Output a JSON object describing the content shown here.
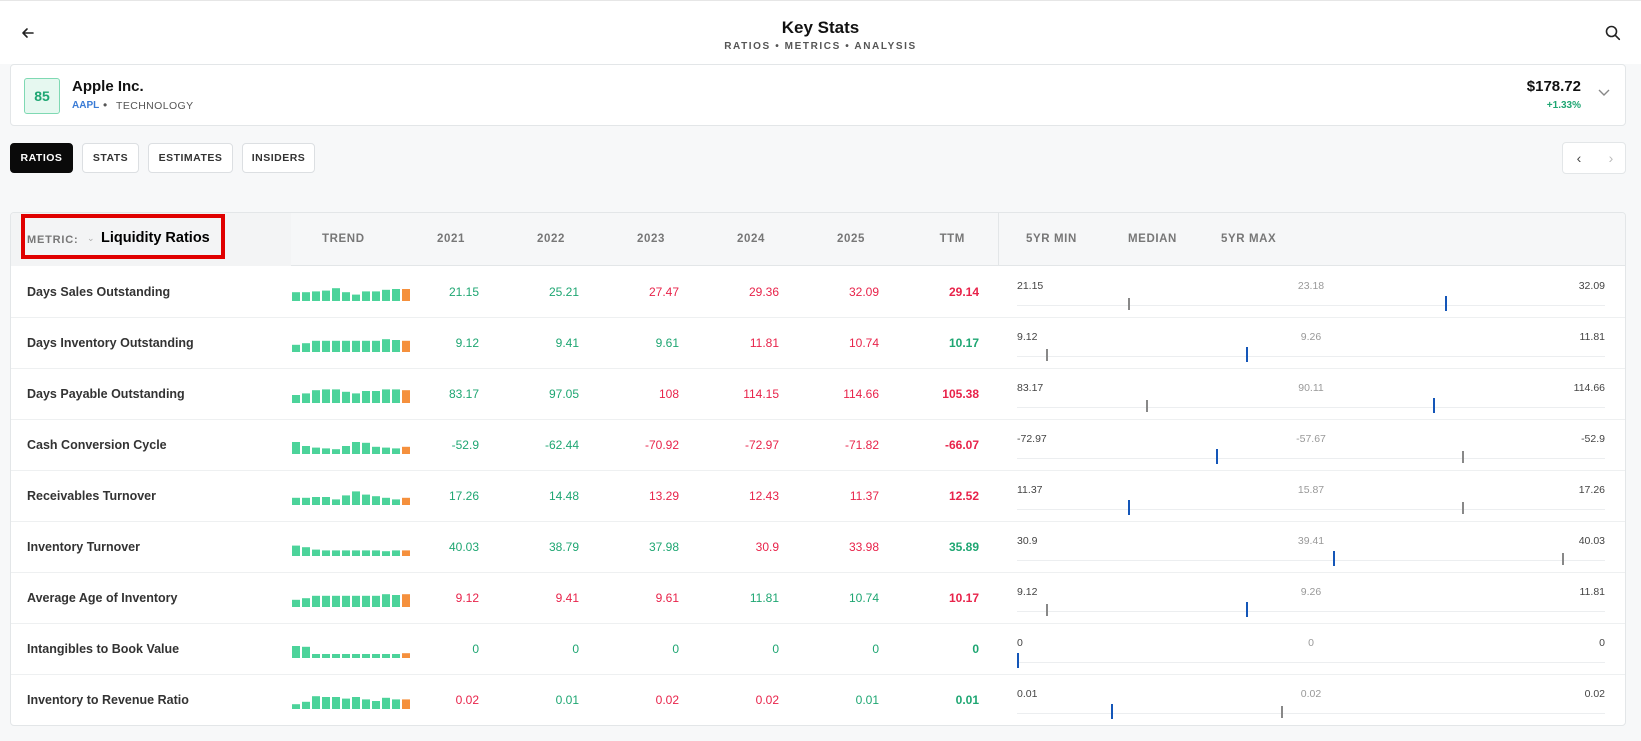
{
  "header": {
    "title": "Key Stats",
    "subtitle": "RATIOS • METRICS • ANALYSIS"
  },
  "company": {
    "score": "85",
    "name": "Apple Inc.",
    "ticker": "AAPL",
    "separator": "•",
    "sector": "TECHNOLOGY",
    "price": "$178.72",
    "change": "+1.33%"
  },
  "tabs": [
    {
      "label": "RATIOS",
      "active": true
    },
    {
      "label": "STATS",
      "active": false
    },
    {
      "label": "ESTIMATES",
      "active": false
    },
    {
      "label": "INSIDERS",
      "active": false
    }
  ],
  "table": {
    "metric_label": "METRIC:",
    "metric_value": "Liquidity Ratios",
    "columns": {
      "trend": "TREND",
      "y2021": "2021",
      "y2022": "2022",
      "y2023": "2023",
      "y2024": "2024",
      "y2025": "2025",
      "ttm": "TTM",
      "min": "5YR MIN",
      "median": "MEDIAN",
      "max": "5YR MAX"
    },
    "rows": [
      {
        "label": "Days Sales Outstanding",
        "values": [
          "21.15",
          "25.21",
          "27.47",
          "29.36",
          "32.09"
        ],
        "ttm": "29.14",
        "colors": [
          "pos",
          "pos",
          "neg",
          "neg",
          "neg"
        ],
        "ttm_color": "neg",
        "min": "21.15",
        "median": "23.18",
        "max": "32.09",
        "med_frac": 0.19,
        "cur_frac": 0.73,
        "trend": [
          0.55,
          0.55,
          0.6,
          0.65,
          0.8,
          0.55,
          0.4,
          0.6,
          0.6,
          0.7,
          0.75,
          0.75
        ]
      },
      {
        "label": "Days Inventory Outstanding",
        "values": [
          "9.12",
          "9.41",
          "9.61",
          "11.81",
          "10.74"
        ],
        "ttm": "10.17",
        "colors": [
          "pos",
          "pos",
          "pos",
          "neg",
          "neg"
        ],
        "ttm_color": "pos",
        "min": "9.12",
        "median": "9.26",
        "max": "11.81",
        "med_frac": 0.05,
        "cur_frac": 0.39,
        "trend": [
          0.45,
          0.55,
          0.7,
          0.7,
          0.7,
          0.7,
          0.7,
          0.7,
          0.7,
          0.8,
          0.75,
          0.7
        ]
      },
      {
        "label": "Days Payable Outstanding",
        "values": [
          "83.17",
          "97.05",
          "108",
          "114.15",
          "114.66"
        ],
        "ttm": "105.38",
        "colors": [
          "pos",
          "pos",
          "neg",
          "neg",
          "neg"
        ],
        "ttm_color": "neg",
        "min": "83.17",
        "median": "90.11",
        "max": "114.66",
        "med_frac": 0.22,
        "cur_frac": 0.71,
        "trend": [
          0.5,
          0.6,
          0.8,
          0.85,
          0.85,
          0.7,
          0.6,
          0.75,
          0.75,
          0.85,
          0.85,
          0.8
        ]
      },
      {
        "label": "Cash Conversion Cycle",
        "values": [
          "-52.9",
          "-62.44",
          "-70.92",
          "-72.97",
          "-71.82"
        ],
        "ttm": "-66.07",
        "colors": [
          "pos",
          "pos",
          "neg",
          "neg",
          "neg"
        ],
        "ttm_color": "neg",
        "min": "-72.97",
        "median": "-57.67",
        "max": "-52.9",
        "med_frac": 0.76,
        "cur_frac": 0.34,
        "trend": [
          0.75,
          0.5,
          0.4,
          0.35,
          0.3,
          0.5,
          0.75,
          0.7,
          0.45,
          0.4,
          0.35,
          0.45
        ]
      },
      {
        "label": "Receivables Turnover",
        "values": [
          "17.26",
          "14.48",
          "13.29",
          "12.43",
          "11.37"
        ],
        "ttm": "12.52",
        "colors": [
          "pos",
          "pos",
          "neg",
          "neg",
          "neg"
        ],
        "ttm_color": "neg",
        "min": "11.37",
        "median": "15.87",
        "max": "17.26",
        "med_frac": 0.76,
        "cur_frac": 0.19,
        "trend": [
          0.45,
          0.45,
          0.5,
          0.5,
          0.35,
          0.6,
          0.85,
          0.65,
          0.55,
          0.45,
          0.35,
          0.45
        ]
      },
      {
        "label": "Inventory Turnover",
        "values": [
          "40.03",
          "38.79",
          "37.98",
          "30.9",
          "33.98"
        ],
        "ttm": "35.89",
        "colors": [
          "pos",
          "pos",
          "pos",
          "neg",
          "neg"
        ],
        "ttm_color": "pos",
        "min": "30.9",
        "median": "39.41",
        "max": "40.03",
        "med_frac": 0.93,
        "cur_frac": 0.54,
        "trend": [
          0.65,
          0.55,
          0.4,
          0.35,
          0.35,
          0.35,
          0.35,
          0.35,
          0.35,
          0.3,
          0.35,
          0.35
        ]
      },
      {
        "label": "Average Age of Inventory",
        "values": [
          "9.12",
          "9.41",
          "9.61",
          "11.81",
          "10.74"
        ],
        "ttm": "10.17",
        "colors": [
          "neg",
          "neg",
          "neg",
          "pos",
          "pos"
        ],
        "ttm_color": "neg",
        "min": "9.12",
        "median": "9.26",
        "max": "11.81",
        "med_frac": 0.05,
        "cur_frac": 0.39,
        "trend": [
          0.45,
          0.55,
          0.7,
          0.7,
          0.7,
          0.7,
          0.7,
          0.7,
          0.7,
          0.8,
          0.75,
          0.8
        ]
      },
      {
        "label": "Intangibles to Book Value",
        "values": [
          "0",
          "0",
          "0",
          "0",
          "0"
        ],
        "ttm": "0",
        "colors": [
          "pos",
          "pos",
          "pos",
          "pos",
          "pos"
        ],
        "ttm_color": "pos",
        "min": "0",
        "median": "0",
        "max": "0",
        "med_frac": null,
        "cur_frac": 0.0,
        "trend": [
          0.75,
          0.7,
          0.25,
          0.25,
          0.25,
          0.25,
          0.25,
          0.25,
          0.25,
          0.25,
          0.25,
          0.3
        ]
      },
      {
        "label": "Inventory to Revenue Ratio",
        "values": [
          "0.02",
          "0.01",
          "0.02",
          "0.02",
          "0.01"
        ],
        "ttm": "0.01",
        "colors": [
          "neg",
          "pos",
          "neg",
          "neg",
          "pos"
        ],
        "ttm_color": "pos",
        "min": "0.01",
        "median": "0.02",
        "max": "0.02",
        "med_frac": 0.45,
        "cur_frac": 0.16,
        "trend": [
          0.3,
          0.45,
          0.8,
          0.75,
          0.75,
          0.65,
          0.75,
          0.6,
          0.5,
          0.7,
          0.6,
          0.6
        ]
      }
    ]
  },
  "colors": {
    "positive": "#1ea672",
    "negative": "#e8234a",
    "trend_bar": "#4cd39a",
    "trend_last": "#f5903d",
    "current_tick": "#1456b8",
    "highlight": "#e00000"
  },
  "icons": {
    "back": "arrow-left-icon",
    "search": "search-icon",
    "expand": "chevron-down-icon",
    "prev": "chevron-left-icon",
    "next": "chevron-right-icon"
  }
}
